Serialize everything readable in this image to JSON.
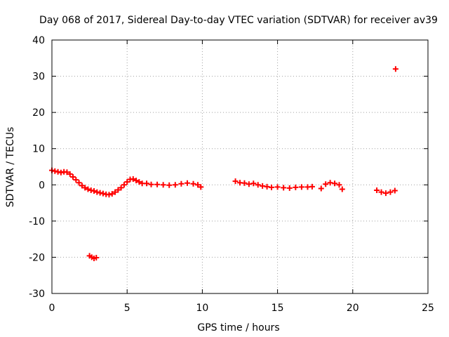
{
  "chart_data": {
    "type": "scatter",
    "title": "Day 068 of 2017, Sidereal Day-to-day VTEC variation (SDTVAR) for receiver av39",
    "xlabel": "GPS time / hours",
    "ylabel": "SDTVAR / TECUs",
    "xlim": [
      0,
      25
    ],
    "ylim": [
      -30,
      40
    ],
    "xticks": [
      0,
      5,
      10,
      15,
      20,
      25
    ],
    "yticks": [
      -30,
      -20,
      -10,
      0,
      10,
      20,
      30,
      40
    ],
    "grid": true,
    "marker": "+",
    "color": "#ff0000",
    "series": [
      {
        "name": "SDTVAR",
        "points": [
          [
            0.0,
            4.0
          ],
          [
            0.2,
            3.8
          ],
          [
            0.4,
            3.6
          ],
          [
            0.6,
            3.4
          ],
          [
            0.8,
            3.6
          ],
          [
            1.0,
            3.5
          ],
          [
            1.2,
            3.0
          ],
          [
            1.4,
            2.2
          ],
          [
            1.6,
            1.4
          ],
          [
            1.8,
            0.6
          ],
          [
            2.0,
            -0.2
          ],
          [
            2.2,
            -0.8
          ],
          [
            2.4,
            -1.2
          ],
          [
            2.6,
            -1.5
          ],
          [
            2.8,
            -1.7
          ],
          [
            3.0,
            -2.0
          ],
          [
            3.2,
            -2.2
          ],
          [
            3.4,
            -2.4
          ],
          [
            3.6,
            -2.6
          ],
          [
            3.8,
            -2.7
          ],
          [
            4.0,
            -2.5
          ],
          [
            4.2,
            -2.0
          ],
          [
            4.4,
            -1.4
          ],
          [
            4.6,
            -0.8
          ],
          [
            4.8,
            0.0
          ],
          [
            5.0,
            0.8
          ],
          [
            5.2,
            1.5
          ],
          [
            5.4,
            1.6
          ],
          [
            5.6,
            1.2
          ],
          [
            5.8,
            0.8
          ],
          [
            6.0,
            0.4
          ],
          [
            6.3,
            0.4
          ],
          [
            6.6,
            0.1
          ],
          [
            7.0,
            0.1
          ],
          [
            7.4,
            0.0
          ],
          [
            7.8,
            -0.1
          ],
          [
            8.2,
            0.0
          ],
          [
            8.6,
            0.3
          ],
          [
            9.0,
            0.5
          ],
          [
            9.4,
            0.3
          ],
          [
            9.7,
            0.0
          ],
          [
            9.9,
            -0.6
          ],
          [
            2.5,
            -19.6
          ],
          [
            2.65,
            -20.0
          ],
          [
            2.8,
            -20.3
          ],
          [
            2.95,
            -20.1
          ],
          [
            12.2,
            1.0
          ],
          [
            12.5,
            0.6
          ],
          [
            12.8,
            0.5
          ],
          [
            13.1,
            0.2
          ],
          [
            13.4,
            0.4
          ],
          [
            13.7,
            0.0
          ],
          [
            14.0,
            -0.3
          ],
          [
            14.3,
            -0.5
          ],
          [
            14.6,
            -0.7
          ],
          [
            15.0,
            -0.6
          ],
          [
            15.4,
            -0.8
          ],
          [
            15.8,
            -0.9
          ],
          [
            16.2,
            -0.7
          ],
          [
            16.6,
            -0.6
          ],
          [
            17.0,
            -0.6
          ],
          [
            17.3,
            -0.5
          ],
          [
            17.9,
            -1.0
          ],
          [
            18.2,
            0.2
          ],
          [
            18.5,
            0.6
          ],
          [
            18.8,
            0.4
          ],
          [
            19.1,
            0.0
          ],
          [
            19.3,
            -1.2
          ],
          [
            21.6,
            -1.5
          ],
          [
            21.9,
            -2.0
          ],
          [
            22.2,
            -2.3
          ],
          [
            22.5,
            -2.0
          ],
          [
            22.8,
            -1.6
          ],
          [
            22.85,
            32.0
          ]
        ]
      }
    ]
  }
}
